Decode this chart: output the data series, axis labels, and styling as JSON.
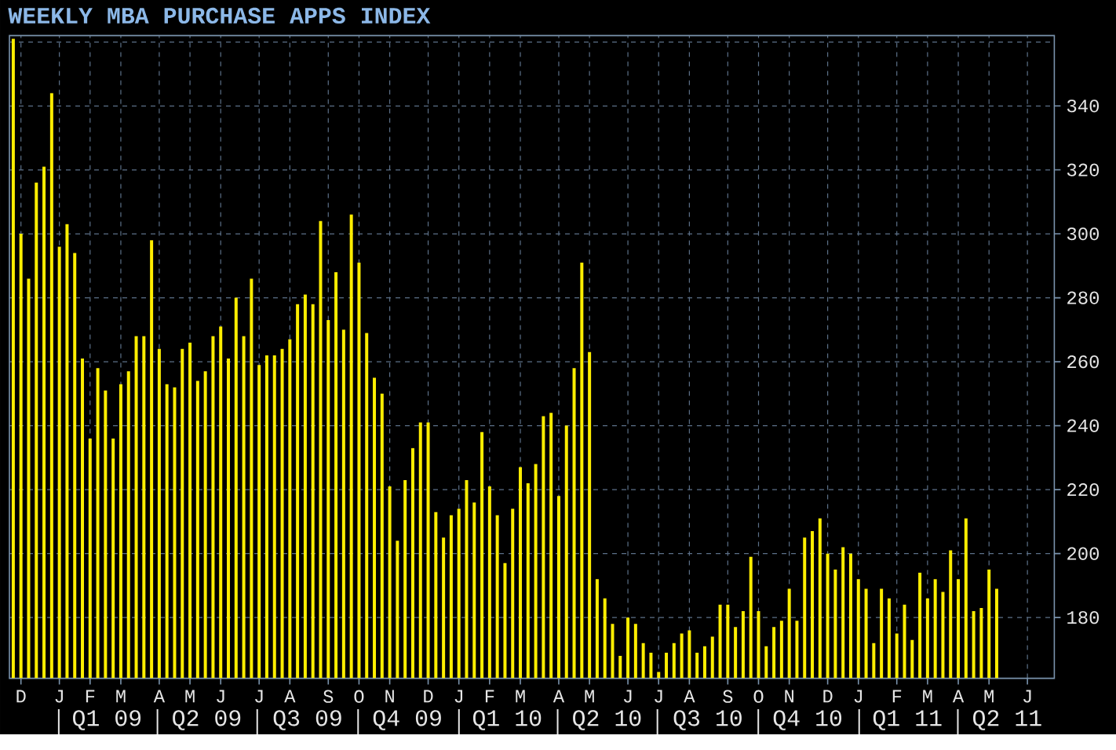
{
  "chart_data": {
    "type": "bar",
    "title": "WEEKLY MBA PURCHASE APPS INDEX",
    "categories": [
      null,
      "D",
      null,
      null,
      null,
      null,
      "J",
      null,
      null,
      null,
      "F",
      null,
      null,
      null,
      "M",
      null,
      null,
      null,
      null,
      "A",
      null,
      null,
      null,
      "M",
      null,
      null,
      null,
      "J",
      null,
      null,
      null,
      null,
      "J",
      null,
      null,
      null,
      "A",
      null,
      null,
      null,
      null,
      "S",
      null,
      null,
      null,
      "O",
      null,
      null,
      null,
      "N",
      null,
      null,
      null,
      null,
      "D",
      null,
      null,
      null,
      "J",
      null,
      null,
      null,
      "F",
      null,
      null,
      null,
      "M",
      null,
      null,
      null,
      null,
      "A",
      null,
      null,
      null,
      "M",
      null,
      null,
      null,
      null,
      "J",
      null,
      null,
      null,
      "J",
      null,
      null,
      null,
      "A",
      null,
      null,
      null,
      null,
      "S",
      null,
      null,
      null,
      "O",
      null,
      null,
      null,
      "N",
      null,
      null,
      null,
      null,
      "D",
      null,
      null,
      null,
      "J",
      null,
      null,
      null,
      null,
      "F",
      null,
      null,
      null,
      "M",
      null,
      null,
      null,
      "A",
      null,
      null,
      null,
      "M",
      null,
      null,
      null,
      null,
      "J",
      null,
      null,
      null
    ],
    "values": [
      361,
      300,
      286,
      316,
      321,
      344,
      296,
      303,
      294,
      261,
      236,
      258,
      251,
      236,
      253,
      257,
      268,
      268,
      298,
      264,
      253,
      252,
      264,
      266,
      254,
      257,
      268,
      271,
      261,
      280,
      268,
      286,
      259,
      262,
      262,
      264,
      267,
      278,
      281,
      278,
      304,
      273,
      288,
      270,
      306,
      291,
      269,
      255,
      250,
      221,
      204,
      223,
      233,
      241,
      241,
      213,
      205,
      212,
      214,
      223,
      216,
      238,
      221,
      212,
      197,
      214,
      227,
      222,
      228,
      243,
      244,
      218,
      240,
      258,
      291,
      263,
      192,
      186,
      178,
      168,
      180,
      178,
      172,
      169,
      163,
      169,
      172,
      175,
      176,
      169,
      171,
      174,
      184,
      184,
      177,
      182,
      199,
      182,
      171,
      177,
      179,
      189,
      179,
      205,
      207,
      211,
      200,
      195,
      202,
      200,
      192,
      189,
      172,
      189,
      186,
      175,
      184,
      173,
      194,
      186,
      192,
      188,
      201,
      192,
      211,
      182,
      183,
      195,
      189,
      null,
      null,
      null,
      null,
      null,
      null,
      null
    ],
    "color": "#ffee00",
    "x2lim": [
      "2008-11-17",
      "2011-06-28"
    ],
    "x2ticks": [
      {
        "value": "2009-01-01",
        "label": null
      },
      {
        "value": "2009-02-14",
        "label": "Q1 09"
      },
      {
        "value": "2009-04-01",
        "label": null
      },
      {
        "value": "2009-05-16",
        "label": "Q2 09"
      },
      {
        "value": "2009-07-01",
        "label": null
      },
      {
        "value": "2009-08-16",
        "label": "Q3 09"
      },
      {
        "value": "2009-10-01",
        "label": null
      },
      {
        "value": "2009-11-15",
        "label": "Q4 09"
      },
      {
        "value": "2010-01-01",
        "label": null
      },
      {
        "value": "2010-02-14",
        "label": "Q1 10"
      },
      {
        "value": "2010-04-01",
        "label": null
      },
      {
        "value": "2010-05-16",
        "label": "Q2 10"
      },
      {
        "value": "2010-07-01",
        "label": null
      },
      {
        "value": "2010-08-16",
        "label": "Q3 10"
      },
      {
        "value": "2010-10-01",
        "label": null
      },
      {
        "value": "2010-11-15",
        "label": "Q4 10"
      },
      {
        "value": "2011-01-01",
        "label": null
      },
      {
        "value": "2011-02-14",
        "label": "Q1 11"
      },
      {
        "value": "2011-04-01",
        "label": null
      },
      {
        "value": "2011-05-16",
        "label": "Q2 11"
      }
    ],
    "ylim": [
      161,
      362
    ],
    "yticks": [
      180,
      200,
      220,
      240,
      260,
      280,
      300,
      320,
      340,
      {
        "value": 360,
        "label": null
      }
    ],
    "grid": true
  }
}
